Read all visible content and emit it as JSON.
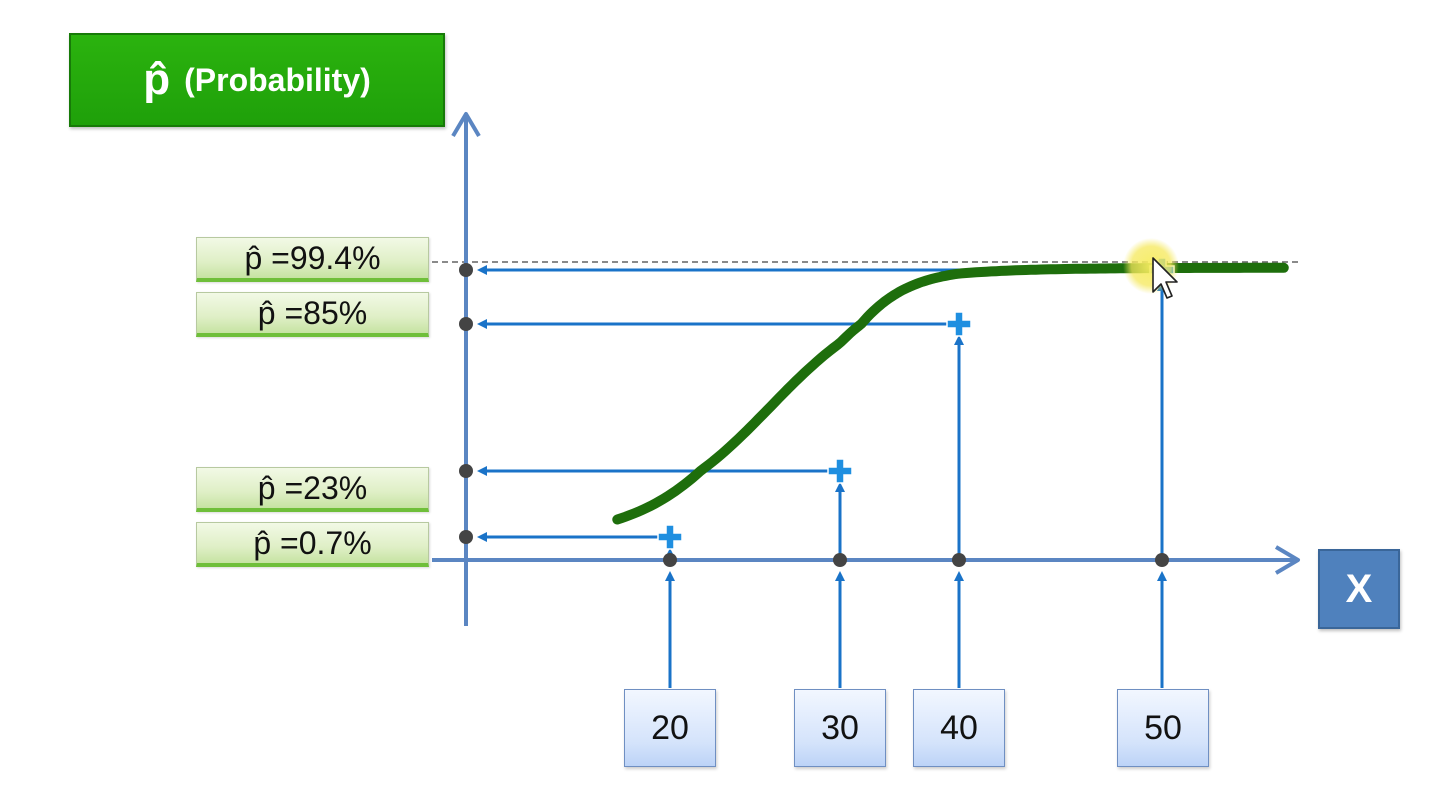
{
  "title": {
    "symbol": "p̂",
    "text": "(Probability)"
  },
  "axis_x_label": "X",
  "p_labels": [
    {
      "text": "p̂ =99.4%",
      "value": 99.4
    },
    {
      "text": "p̂ =85%",
      "value": 85
    },
    {
      "text": "p̂ =23%",
      "value": 23
    },
    {
      "text": "p̂ =0.7%",
      "value": 0.7
    }
  ],
  "x_values": [
    "20",
    "30",
    "40",
    "50"
  ],
  "colors": {
    "title_green": "#1fa00a",
    "curve_green": "#1e6e0c",
    "axis_blue": "#5b86c2",
    "arrow_blue": "#1a73c8",
    "marker_blue": "#1f8fe0",
    "dot_gray": "#444444",
    "cursor_highlight": "#f5e85a"
  },
  "chart_data": {
    "type": "line",
    "series": [
      {
        "x": [
          20,
          30,
          40,
          50
        ],
        "y": [
          0.7,
          23,
          85,
          99.4
        ]
      }
    ]
  }
}
